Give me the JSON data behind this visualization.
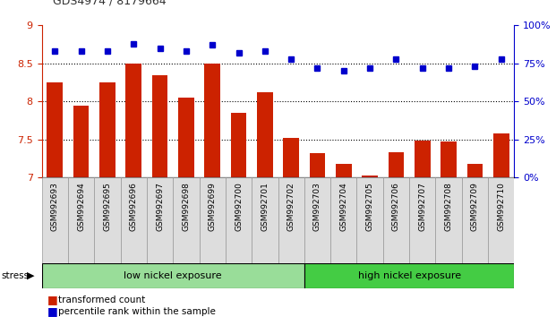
{
  "title": "GDS4974 / 8179664",
  "samples": [
    "GSM992693",
    "GSM992694",
    "GSM992695",
    "GSM992696",
    "GSM992697",
    "GSM992698",
    "GSM992699",
    "GSM992700",
    "GSM992701",
    "GSM992702",
    "GSM992703",
    "GSM992704",
    "GSM992705",
    "GSM992706",
    "GSM992707",
    "GSM992708",
    "GSM992709",
    "GSM992710"
  ],
  "bar_values": [
    8.25,
    7.95,
    8.25,
    8.5,
    8.35,
    8.05,
    8.5,
    7.85,
    8.12,
    7.52,
    7.32,
    7.18,
    7.03,
    7.33,
    7.48,
    7.47,
    7.18,
    7.58
  ],
  "dot_values": [
    83,
    83,
    83,
    88,
    85,
    83,
    87,
    82,
    83,
    78,
    72,
    70,
    72,
    78,
    72,
    72,
    73,
    78
  ],
  "bar_color": "#cc2200",
  "dot_color": "#0000cc",
  "ylim_left": [
    7,
    9
  ],
  "ylim_right": [
    0,
    100
  ],
  "yticks_left": [
    7,
    7.5,
    8,
    8.5,
    9
  ],
  "yticks_right": [
    0,
    25,
    50,
    75,
    100
  ],
  "ytick_labels_right": [
    "0%",
    "25%",
    "50%",
    "75%",
    "100%"
  ],
  "group1_label": "low nickel exposure",
  "group2_label": "high nickel exposure",
  "group1_count": 10,
  "group2_count": 8,
  "group1_color": "#99dd99",
  "group2_color": "#44cc44",
  "stress_label": "stress",
  "legend_bar": "transformed count",
  "legend_dot": "percentile rank within the sample",
  "title_color": "#333333",
  "left_axis_color": "#cc2200",
  "right_axis_color": "#0000cc",
  "bg_color": "#ffffff",
  "xticklabel_bg": "#dddddd"
}
